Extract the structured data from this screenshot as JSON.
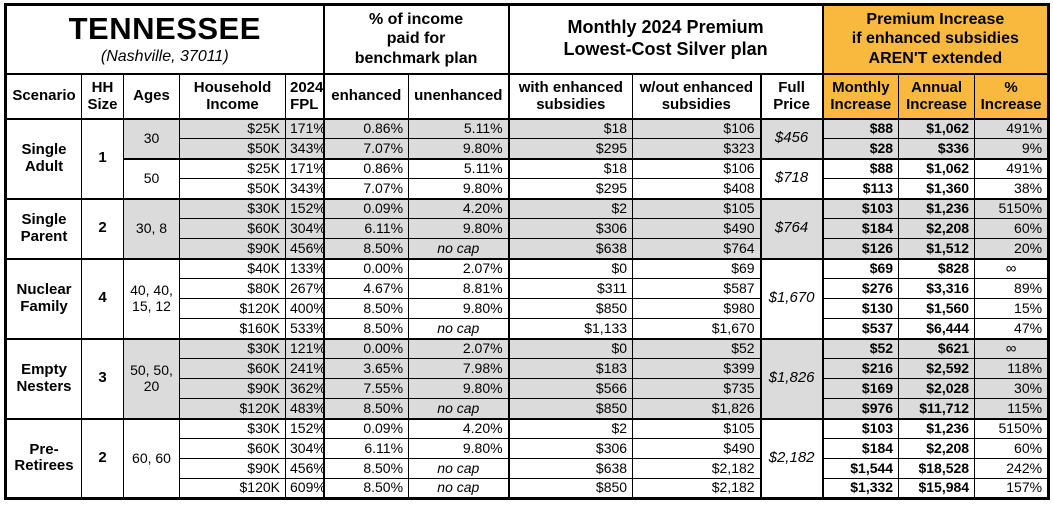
{
  "window": {
    "title": "TENNESSEE",
    "subtitle": "(Nashville, 37011)"
  },
  "colors": {
    "accent": "#F9B93F",
    "row_shade": "#DBDBDB",
    "border": "#000000",
    "background": "#FFFFFF"
  },
  "header_groups": {
    "benchmark": "% of income\npaid for\nbenchmark plan",
    "premium": "Monthly 2024 Premium\nLowest-Cost Silver plan",
    "increase": "Premium Increase\nif enhanced subsidies\nAREN'T extended"
  },
  "columns": [
    {
      "key": "scenario",
      "label": "Scenario"
    },
    {
      "key": "hh_size",
      "label": "HH\nSize"
    },
    {
      "key": "ages",
      "label": "Ages"
    },
    {
      "key": "income",
      "label": "Household\nIncome"
    },
    {
      "key": "fpl",
      "label": "2024\nFPL"
    },
    {
      "key": "enhanced",
      "label": "enhanced"
    },
    {
      "key": "unenhanced",
      "label": "unenhanced"
    },
    {
      "key": "with_sub",
      "label": "with enhanced\nsubsidies"
    },
    {
      "key": "without_sub",
      "label": "w/out enhanced\nsubsidies"
    },
    {
      "key": "full_price",
      "label": "Full\nPrice"
    },
    {
      "key": "monthly",
      "label": "Monthly\nIncrease"
    },
    {
      "key": "annual",
      "label": "Annual\nIncrease"
    },
    {
      "key": "pct",
      "label": "%\nIncrease"
    }
  ],
  "row_cell_keys": [
    "income",
    "fpl",
    "enhanced",
    "unenhanced",
    "with_sub",
    "without_sub",
    "monthly",
    "annual",
    "pct"
  ],
  "groups": [
    {
      "scenario": "Single\nAdult",
      "hh_size": "1",
      "subgroups": [
        {
          "ages": "30",
          "full_price": "$456",
          "shaded": true,
          "rows": [
            [
              "$25K",
              "171%",
              "0.86%",
              "5.11%",
              "$18",
              "$106",
              "$88",
              "$1,062",
              "491%"
            ],
            [
              "$50K",
              "343%",
              "7.07%",
              "9.80%",
              "$295",
              "$323",
              "$28",
              "$336",
              "9%"
            ]
          ]
        },
        {
          "ages": "50",
          "full_price": "$718",
          "shaded": false,
          "rows": [
            [
              "$25K",
              "171%",
              "0.86%",
              "5.11%",
              "$18",
              "$106",
              "$88",
              "$1,062",
              "491%"
            ],
            [
              "$50K",
              "343%",
              "7.07%",
              "9.80%",
              "$295",
              "$408",
              "$113",
              "$1,360",
              "38%"
            ]
          ]
        }
      ]
    },
    {
      "scenario": "Single\nParent",
      "hh_size": "2",
      "subgroups": [
        {
          "ages": "30, 8",
          "full_price": "$764",
          "shaded": true,
          "rows": [
            [
              "$30K",
              "152%",
              "0.09%",
              "4.20%",
              "$2",
              "$105",
              "$103",
              "$1,236",
              "5150%"
            ],
            [
              "$60K",
              "304%",
              "6.11%",
              "9.80%",
              "$306",
              "$490",
              "$184",
              "$2,208",
              "60%"
            ],
            [
              "$90K",
              "456%",
              "8.50%",
              "no cap",
              "$638",
              "$764",
              "$126",
              "$1,512",
              "20%"
            ]
          ]
        }
      ]
    },
    {
      "scenario": "Nuclear\nFamily",
      "hh_size": "4",
      "subgroups": [
        {
          "ages": "40, 40,\n15, 12",
          "full_price": "$1,670",
          "shaded": false,
          "rows": [
            [
              "$40K",
              "133%",
              "0.00%",
              "2.07%",
              "$0",
              "$69",
              "$69",
              "$828",
              "∞"
            ],
            [
              "$80K",
              "267%",
              "4.67%",
              "8.81%",
              "$311",
              "$587",
              "$276",
              "$3,316",
              "89%"
            ],
            [
              "$120K",
              "400%",
              "8.50%",
              "9.80%",
              "$850",
              "$980",
              "$130",
              "$1,560",
              "15%"
            ],
            [
              "$160K",
              "533%",
              "8.50%",
              "no cap",
              "$1,133",
              "$1,670",
              "$537",
              "$6,444",
              "47%"
            ]
          ]
        }
      ]
    },
    {
      "scenario": "Empty\nNesters",
      "hh_size": "3",
      "subgroups": [
        {
          "ages": "50, 50,\n20",
          "full_price": "$1,826",
          "shaded": true,
          "rows": [
            [
              "$30K",
              "121%",
              "0.00%",
              "2.07%",
              "$0",
              "$52",
              "$52",
              "$621",
              "∞"
            ],
            [
              "$60K",
              "241%",
              "3.65%",
              "7.98%",
              "$183",
              "$399",
              "$216",
              "$2,592",
              "118%"
            ],
            [
              "$90K",
              "362%",
              "7.55%",
              "9.80%",
              "$566",
              "$735",
              "$169",
              "$2,028",
              "30%"
            ],
            [
              "$120K",
              "483%",
              "8.50%",
              "no cap",
              "$850",
              "$1,826",
              "$976",
              "$11,712",
              "115%"
            ]
          ]
        }
      ]
    },
    {
      "scenario": "Pre-\nRetirees",
      "hh_size": "2",
      "subgroups": [
        {
          "ages": "60, 60",
          "full_price": "$2,182",
          "shaded": false,
          "rows": [
            [
              "$30K",
              "152%",
              "0.09%",
              "4.20%",
              "$2",
              "$105",
              "$103",
              "$1,236",
              "5150%"
            ],
            [
              "$60K",
              "304%",
              "6.11%",
              "9.80%",
              "$306",
              "$490",
              "$184",
              "$2,208",
              "60%"
            ],
            [
              "$90K",
              "456%",
              "8.50%",
              "no cap",
              "$638",
              "$2,182",
              "$1,544",
              "$18,528",
              "242%"
            ],
            [
              "$120K",
              "609%",
              "8.50%",
              "no cap",
              "$850",
              "$2,182",
              "$1,332",
              "$15,984",
              "157%"
            ]
          ]
        }
      ]
    }
  ]
}
